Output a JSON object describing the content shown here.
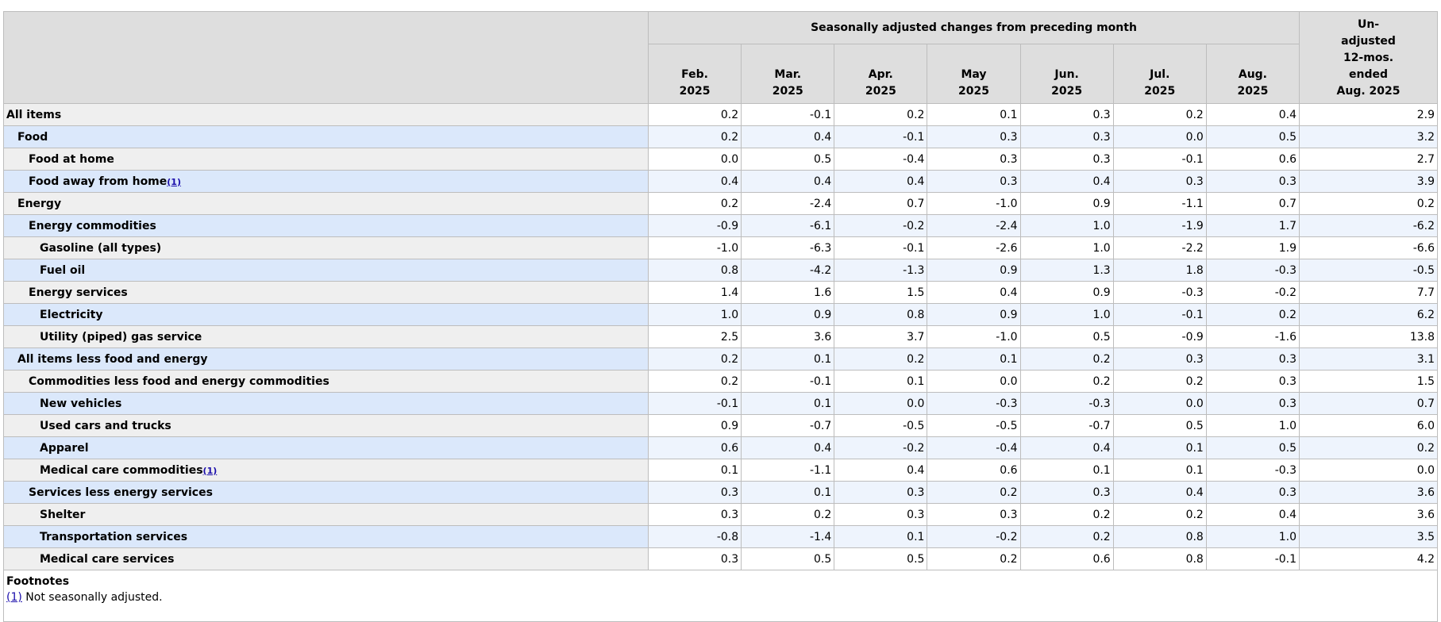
{
  "header": {
    "group": "Seasonally adjusted changes from preceding month",
    "columns": [
      [
        "Feb.",
        "2025"
      ],
      [
        "Mar.",
        "2025"
      ],
      [
        "Apr.",
        "2025"
      ],
      [
        "May",
        "2025"
      ],
      [
        "Jun.",
        "2025"
      ],
      [
        "Jul.",
        "2025"
      ],
      [
        "Aug.",
        "2025"
      ]
    ],
    "unadjusted": [
      "Un-",
      "adjusted",
      "12-mos.",
      "ended",
      "Aug. 2025"
    ]
  },
  "table": {
    "rows": [
      {
        "label": "All items",
        "indent": 0,
        "values": [
          "0.2",
          "-0.1",
          "0.2",
          "0.1",
          "0.3",
          "0.2",
          "0.4",
          "2.9"
        ]
      },
      {
        "label": "Food",
        "indent": 1,
        "values": [
          "0.2",
          "0.4",
          "-0.1",
          "0.3",
          "0.3",
          "0.0",
          "0.5",
          "3.2"
        ]
      },
      {
        "label": "Food at home",
        "indent": 2,
        "values": [
          "0.0",
          "0.5",
          "-0.4",
          "0.3",
          "0.3",
          "-0.1",
          "0.6",
          "2.7"
        ]
      },
      {
        "label": "Food away from home",
        "note": "(1)",
        "indent": 2,
        "values": [
          "0.4",
          "0.4",
          "0.4",
          "0.3",
          "0.4",
          "0.3",
          "0.3",
          "3.9"
        ]
      },
      {
        "label": "Energy",
        "indent": 1,
        "values": [
          "0.2",
          "-2.4",
          "0.7",
          "-1.0",
          "0.9",
          "-1.1",
          "0.7",
          "0.2"
        ]
      },
      {
        "label": "Energy commodities",
        "indent": 2,
        "values": [
          "-0.9",
          "-6.1",
          "-0.2",
          "-2.4",
          "1.0",
          "-1.9",
          "1.7",
          "-6.2"
        ]
      },
      {
        "label": "Gasoline (all types)",
        "indent": 3,
        "values": [
          "-1.0",
          "-6.3",
          "-0.1",
          "-2.6",
          "1.0",
          "-2.2",
          "1.9",
          "-6.6"
        ]
      },
      {
        "label": "Fuel oil",
        "indent": 3,
        "values": [
          "0.8",
          "-4.2",
          "-1.3",
          "0.9",
          "1.3",
          "1.8",
          "-0.3",
          "-0.5"
        ]
      },
      {
        "label": "Energy services",
        "indent": 2,
        "values": [
          "1.4",
          "1.6",
          "1.5",
          "0.4",
          "0.9",
          "-0.3",
          "-0.2",
          "7.7"
        ]
      },
      {
        "label": "Electricity",
        "indent": 3,
        "values": [
          "1.0",
          "0.9",
          "0.8",
          "0.9",
          "1.0",
          "-0.1",
          "0.2",
          "6.2"
        ]
      },
      {
        "label": "Utility (piped) gas service",
        "indent": 3,
        "values": [
          "2.5",
          "3.6",
          "3.7",
          "-1.0",
          "0.5",
          "-0.9",
          "-1.6",
          "13.8"
        ]
      },
      {
        "label": "All items less food and energy",
        "indent": 1,
        "values": [
          "0.2",
          "0.1",
          "0.2",
          "0.1",
          "0.2",
          "0.3",
          "0.3",
          "3.1"
        ]
      },
      {
        "label": "Commodities less food and energy commodities",
        "indent": 2,
        "values": [
          "0.2",
          "-0.1",
          "0.1",
          "0.0",
          "0.2",
          "0.2",
          "0.3",
          "1.5"
        ]
      },
      {
        "label": "New vehicles",
        "indent": 3,
        "values": [
          "-0.1",
          "0.1",
          "0.0",
          "-0.3",
          "-0.3",
          "0.0",
          "0.3",
          "0.7"
        ]
      },
      {
        "label": "Used cars and trucks",
        "indent": 3,
        "values": [
          "0.9",
          "-0.7",
          "-0.5",
          "-0.5",
          "-0.7",
          "0.5",
          "1.0",
          "6.0"
        ]
      },
      {
        "label": "Apparel",
        "indent": 3,
        "values": [
          "0.6",
          "0.4",
          "-0.2",
          "-0.4",
          "0.4",
          "0.1",
          "0.5",
          "0.2"
        ]
      },
      {
        "label": "Medical care commodities",
        "note": "(1)",
        "indent": 3,
        "values": [
          "0.1",
          "-1.1",
          "0.4",
          "0.6",
          "0.1",
          "0.1",
          "-0.3",
          "0.0"
        ]
      },
      {
        "label": "Services less energy services",
        "indent": 2,
        "values": [
          "0.3",
          "0.1",
          "0.3",
          "0.2",
          "0.3",
          "0.4",
          "0.3",
          "3.6"
        ]
      },
      {
        "label": "Shelter",
        "indent": 3,
        "values": [
          "0.3",
          "0.2",
          "0.3",
          "0.3",
          "0.2",
          "0.2",
          "0.4",
          "3.6"
        ]
      },
      {
        "label": "Transportation services",
        "indent": 3,
        "values": [
          "-0.8",
          "-1.4",
          "0.1",
          "-0.2",
          "0.2",
          "0.8",
          "1.0",
          "3.5"
        ]
      },
      {
        "label": "Medical care services",
        "indent": 3,
        "values": [
          "0.3",
          "0.5",
          "0.5",
          "0.2",
          "0.6",
          "0.8",
          "-0.1",
          "4.2"
        ]
      }
    ]
  },
  "footnotes": {
    "title": "Footnotes",
    "items": [
      {
        "marker": "(1)",
        "text": "Not seasonally adjusted."
      }
    ]
  }
}
